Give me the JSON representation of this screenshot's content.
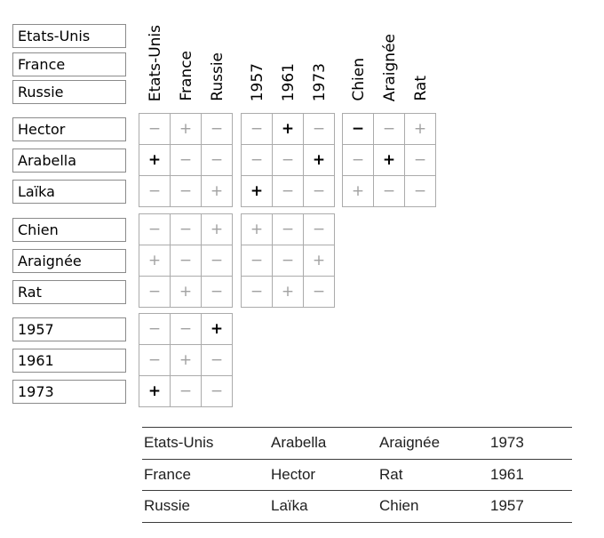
{
  "colors": {
    "background": "#ffffff",
    "box_border": "#8b8b8b",
    "cell_border": "#ababab",
    "weak_symbol": "#a2a2a2",
    "strong_symbol": "#000000",
    "table_line": "#3c3c3c",
    "table_text": "#202020"
  },
  "top_list": {
    "items": [
      "Etats-Unis",
      "France",
      "Russie"
    ]
  },
  "column_headers": [
    "Etats-Unis",
    "France",
    "Russie",
    "1957",
    "1961",
    "1973",
    "Chien",
    "Araignée",
    "Rat"
  ],
  "row_groups": [
    {
      "labels": [
        "Hector",
        "Arabella",
        "Laïka"
      ],
      "blocks": [
        {
          "cells": [
            [
              "-w",
              "+w",
              "-w"
            ],
            [
              "+s",
              "-w",
              "-w"
            ],
            [
              "-w",
              "-w",
              "+w"
            ]
          ]
        },
        {
          "cells": [
            [
              "-w",
              "+s",
              "-w"
            ],
            [
              "-w",
              "-w",
              "+s"
            ],
            [
              "+s",
              "-w",
              "-w"
            ]
          ]
        },
        {
          "cells": [
            [
              "-s",
              "-w",
              "+w"
            ],
            [
              "-w",
              "+s",
              "-w"
            ],
            [
              "+w",
              "-w",
              "-w"
            ]
          ]
        }
      ]
    },
    {
      "labels": [
        "Chien",
        "Araignée",
        "Rat"
      ],
      "blocks": [
        {
          "cells": [
            [
              "-w",
              "-w",
              "+w"
            ],
            [
              "+w",
              "-w",
              "-w"
            ],
            [
              "-w",
              "+w",
              "-w"
            ]
          ]
        },
        {
          "cells": [
            [
              "+w",
              "-w",
              "-w"
            ],
            [
              "-w",
              "-w",
              "+w"
            ],
            [
              "-w",
              "+w",
              "-w"
            ]
          ]
        }
      ]
    },
    {
      "labels": [
        "1957",
        "1961",
        "1973"
      ],
      "blocks": [
        {
          "cells": [
            [
              "-w",
              "-w",
              "+s"
            ],
            [
              "-w",
              "+w",
              "-w"
            ],
            [
              "+s",
              "-w",
              "-w"
            ]
          ]
        }
      ]
    }
  ],
  "solution_table": {
    "rows": [
      [
        "Etats-Unis",
        "Arabella",
        "Araignée",
        "1973"
      ],
      [
        "France",
        "Hector",
        "Rat",
        "1961"
      ],
      [
        "Russie",
        "Laïka",
        "Chien",
        "1957"
      ]
    ]
  }
}
